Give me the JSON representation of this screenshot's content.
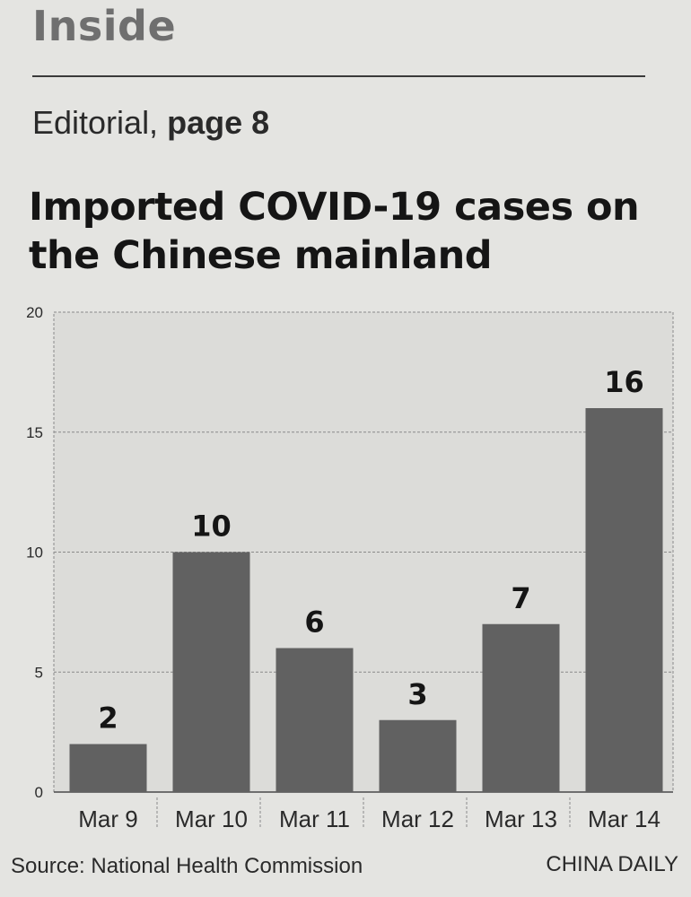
{
  "header": {
    "section": "Inside",
    "editorial_prefix": "Editorial, ",
    "editorial_page": "page 8"
  },
  "chart_data": {
    "type": "bar",
    "title": "Imported COVID-19 cases on the Chinese mainland",
    "categories": [
      "Mar 9",
      "Mar 10",
      "Mar 11",
      "Mar 12",
      "Mar 13",
      "Mar 14"
    ],
    "values": [
      2,
      10,
      6,
      3,
      7,
      16
    ],
    "data_labels": [
      "2",
      "10",
      "6",
      "3",
      "7",
      "16"
    ],
    "yticks": [
      0,
      5,
      10,
      15,
      20
    ],
    "ylim": [
      0,
      20
    ],
    "xlabel": "",
    "ylabel": "",
    "grid": true,
    "legend": "none",
    "colors": {
      "bar": "#616161",
      "grid": "#8a8a8a",
      "plot_background": "#dcdcd9"
    }
  },
  "footer": {
    "source": "Source: National Health Commission",
    "credit": "CHINA DAILY"
  }
}
